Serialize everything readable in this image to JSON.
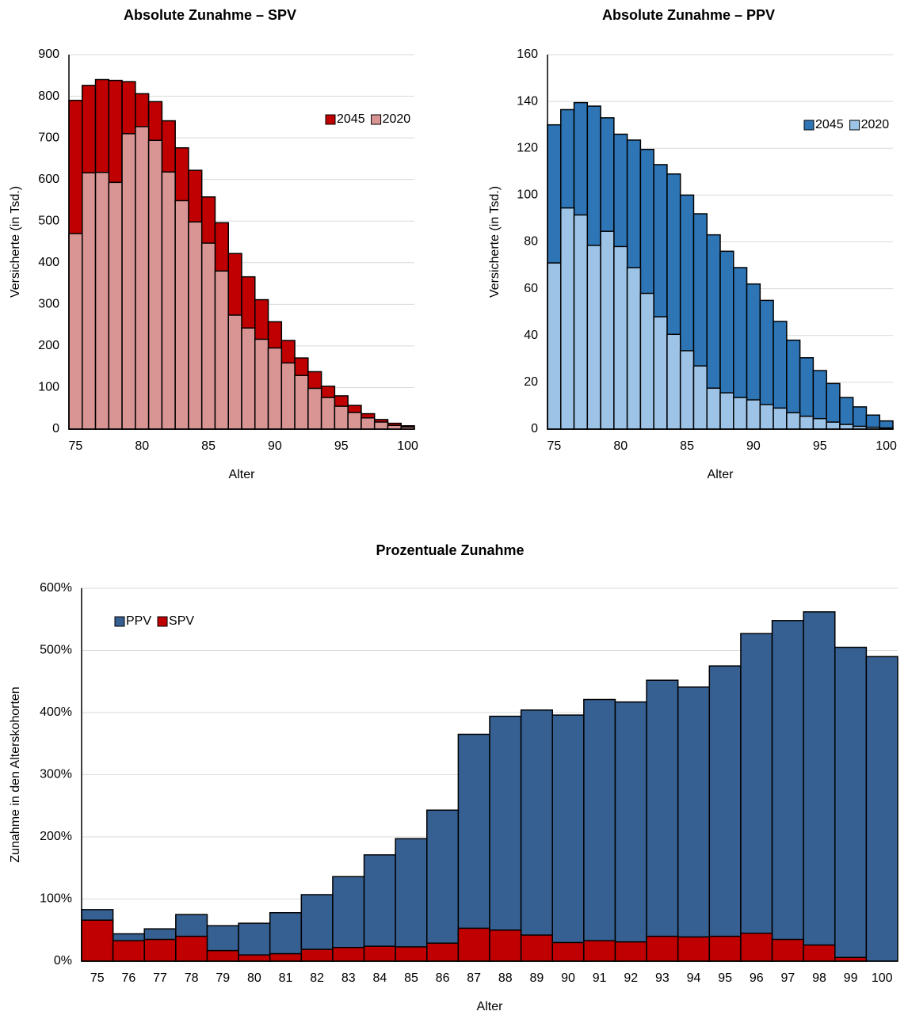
{
  "chart_data": [
    {
      "type": "bar",
      "title": "Absolute Zunahme – SPV",
      "x_label": "Alter",
      "y_label": "Versicherte (in Tsd.)",
      "categories": [
        "75",
        null,
        null,
        null,
        null,
        "80",
        null,
        null,
        null,
        null,
        "85",
        null,
        null,
        null,
        null,
        "90",
        null,
        null,
        null,
        null,
        "95",
        null,
        null,
        null,
        null,
        "100"
      ],
      "series": [
        {
          "name": "2045",
          "color": "#c00000",
          "values": [
            790,
            826,
            840,
            838,
            835,
            806,
            787,
            741,
            676,
            622,
            558,
            496,
            422,
            366,
            311,
            258,
            213,
            171,
            138,
            103,
            80,
            57,
            37,
            23,
            14,
            8
          ]
        },
        {
          "name": "2020",
          "color": "#d99594",
          "values": [
            470,
            616,
            617,
            593,
            710,
            727,
            694,
            618,
            549,
            498,
            447,
            380,
            274,
            243,
            216,
            195,
            159,
            129,
            98,
            76,
            55,
            40,
            27,
            17,
            9,
            5
          ]
        }
      ],
      "ylim": [
        0,
        900
      ],
      "yticks": [
        0,
        100,
        200,
        300,
        400,
        500,
        600,
        700,
        800,
        900
      ],
      "grid": true,
      "legend": "upper right"
    },
    {
      "type": "bar",
      "title": "Absolute Zunahme – PPV",
      "x_label": "Alter",
      "y_label": "Versicherte (in Tsd.)",
      "categories": [
        "75",
        null,
        null,
        null,
        null,
        "80",
        null,
        null,
        null,
        null,
        "85",
        null,
        null,
        null,
        null,
        "90",
        null,
        null,
        null,
        null,
        "95",
        null,
        null,
        null,
        null,
        "100"
      ],
      "series": [
        {
          "name": "2045",
          "color": "#2e75b6",
          "values": [
            130,
            136.5,
            139.5,
            138,
            133,
            126,
            123.5,
            119.5,
            113,
            109,
            100,
            92,
            83,
            76,
            69,
            62,
            55,
            46,
            38,
            30.5,
            25,
            19.5,
            13.5,
            9.5,
            6,
            3.5
          ]
        },
        {
          "name": "2020",
          "color": "#9dc3e6",
          "values": [
            71,
            94.5,
            91.5,
            78.5,
            84.5,
            78,
            69,
            58,
            48,
            40.5,
            33.5,
            27,
            17.5,
            15.5,
            13.5,
            12.5,
            10.5,
            9,
            7,
            5.5,
            4.5,
            3,
            2,
            1.2,
            0.8,
            0.5
          ]
        }
      ],
      "ylim": [
        0,
        160
      ],
      "yticks": [
        0,
        20,
        40,
        60,
        80,
        100,
        120,
        140,
        160
      ],
      "grid": true,
      "legend": "upper right"
    },
    {
      "type": "bar",
      "title": "Prozentuale Zunahme",
      "x_label": "Alter",
      "y_label": "Zunahme in den Alterskohorten",
      "categories": [
        "75",
        "76",
        "77",
        "78",
        "79",
        "80",
        "81",
        "82",
        "83",
        "84",
        "85",
        "86",
        "87",
        "88",
        "89",
        "90",
        "91",
        "92",
        "93",
        "94",
        "95",
        "96",
        "97",
        "98",
        "99",
        "100"
      ],
      "series": [
        {
          "name": "PPV",
          "color": "#366092",
          "values": [
            83,
            44,
            52,
            75,
            57,
            61,
            78,
            107,
            136,
            171,
            197,
            243,
            365,
            394,
            404,
            396,
            421,
            417,
            452,
            441,
            475,
            527,
            548,
            562,
            505,
            490
          ]
        },
        {
          "name": "SPV",
          "color": "#c00000",
          "values": [
            66,
            33,
            35,
            40,
            17,
            10,
            12,
            19,
            22,
            24,
            23,
            29,
            53,
            50,
            42,
            30,
            33,
            31,
            40,
            39,
            40,
            45,
            35,
            26,
            6,
            0
          ]
        }
      ],
      "ylim": [
        0,
        600
      ],
      "yticks": [
        {
          "value": 0,
          "label": "0%"
        },
        {
          "value": 100,
          "label": "100%"
        },
        {
          "value": 200,
          "label": "200%"
        },
        {
          "value": 300,
          "label": "300%"
        },
        {
          "value": 400,
          "label": "400%"
        },
        {
          "value": 500,
          "label": "500%"
        },
        {
          "value": 600,
          "label": "600%"
        }
      ],
      "grid": true,
      "legend": "upper left"
    }
  ]
}
